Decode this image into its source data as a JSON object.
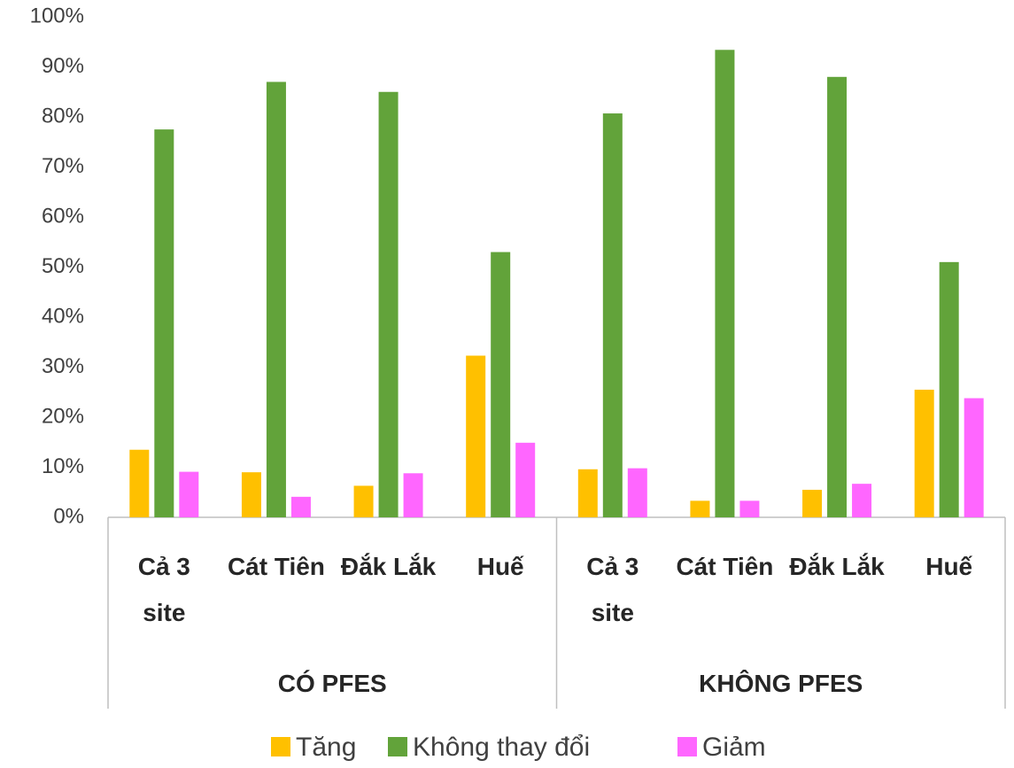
{
  "chart_data": {
    "type": "bar",
    "groups": [
      {
        "label": "CÓ PFES",
        "categories": [
          "Cả 3 site",
          "Cát Tiên",
          "Đắk Lắk",
          "Huế"
        ]
      },
      {
        "label": "KHÔNG PFES",
        "categories": [
          "Cả 3 site",
          "Cát Tiên",
          "Đắk Lắk",
          "Huế"
        ]
      }
    ],
    "series": [
      {
        "name": "Tăng",
        "color": "#ffc000",
        "values": [
          13.5,
          9,
          6.3,
          32.3,
          9.6,
          3.3,
          5.5,
          25.5
        ]
      },
      {
        "name": "Không thay đổi",
        "color": "#62a33a",
        "values": [
          77.5,
          87,
          85,
          53,
          80.7,
          93.4,
          88,
          51
        ]
      },
      {
        "name": "Giảm",
        "color": "#ff66ff",
        "values": [
          9.1,
          4.1,
          8.8,
          14.9,
          9.8,
          3.3,
          6.7,
          23.8
        ]
      }
    ],
    "ylim": [
      0,
      100
    ],
    "yticks": [
      {
        "value": 0,
        "label": "0%"
      },
      {
        "value": 10,
        "label": "10%"
      },
      {
        "value": 20,
        "label": "20%"
      },
      {
        "value": 30,
        "label": "30%"
      },
      {
        "value": 40,
        "label": "40%"
      },
      {
        "value": 50,
        "label": "50%"
      },
      {
        "value": 60,
        "label": "60%"
      },
      {
        "value": 70,
        "label": "70%"
      },
      {
        "value": 80,
        "label": "80%"
      },
      {
        "value": 90,
        "label": "90%"
      },
      {
        "value": 100,
        "label": "100%"
      }
    ],
    "grid": false,
    "legend": "bottom"
  }
}
